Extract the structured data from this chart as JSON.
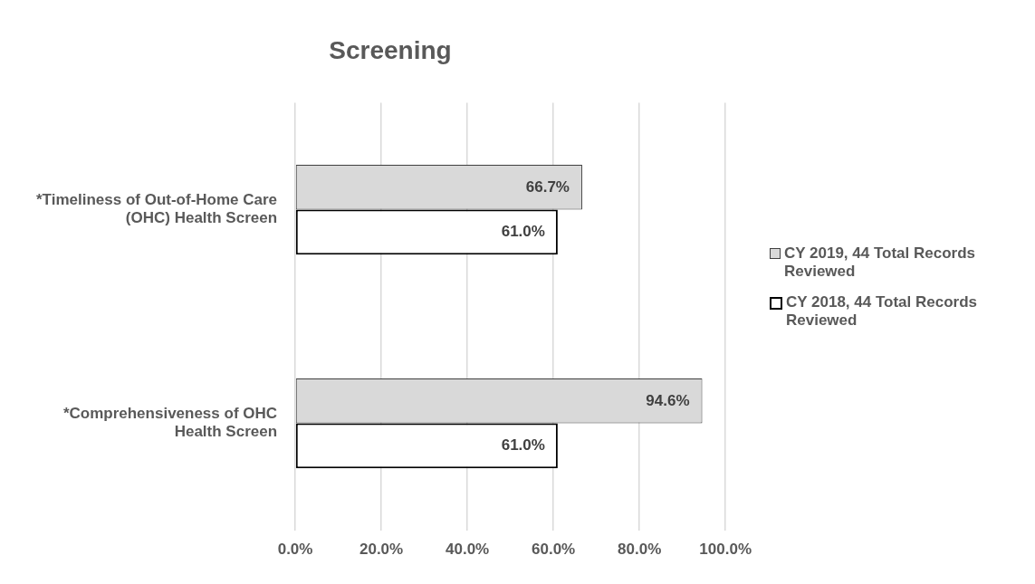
{
  "chart_data": {
    "type": "bar",
    "orientation": "horizontal",
    "title": "Screening",
    "categories": [
      "*Timeliness of Out-of-Home Care (OHC) Health Screen",
      "*Comprehensiveness of OHC Health Screen"
    ],
    "series": [
      {
        "name": "CY 2019, 44 Total Records Reviewed",
        "color": "#d9d9d9",
        "values": [
          66.7,
          94.6
        ],
        "value_labels": [
          "66.7%",
          "94.6%"
        ]
      },
      {
        "name": "CY 2018, 44 Total Records Reviewed",
        "color": "#ffffff",
        "values": [
          61.0,
          61.0
        ],
        "value_labels": [
          "61.0%",
          "61.0%"
        ]
      }
    ],
    "xlim": [
      0,
      100
    ],
    "xticks": [
      {
        "value": 0,
        "label": "0.0%"
      },
      {
        "value": 20,
        "label": "20.0%"
      },
      {
        "value": 40,
        "label": "40.0%"
      },
      {
        "value": 60,
        "label": "60.0%"
      },
      {
        "value": 80,
        "label": "80.0%"
      },
      {
        "value": 100,
        "label": "100.0%"
      }
    ],
    "grid": "x",
    "legend": "right"
  }
}
